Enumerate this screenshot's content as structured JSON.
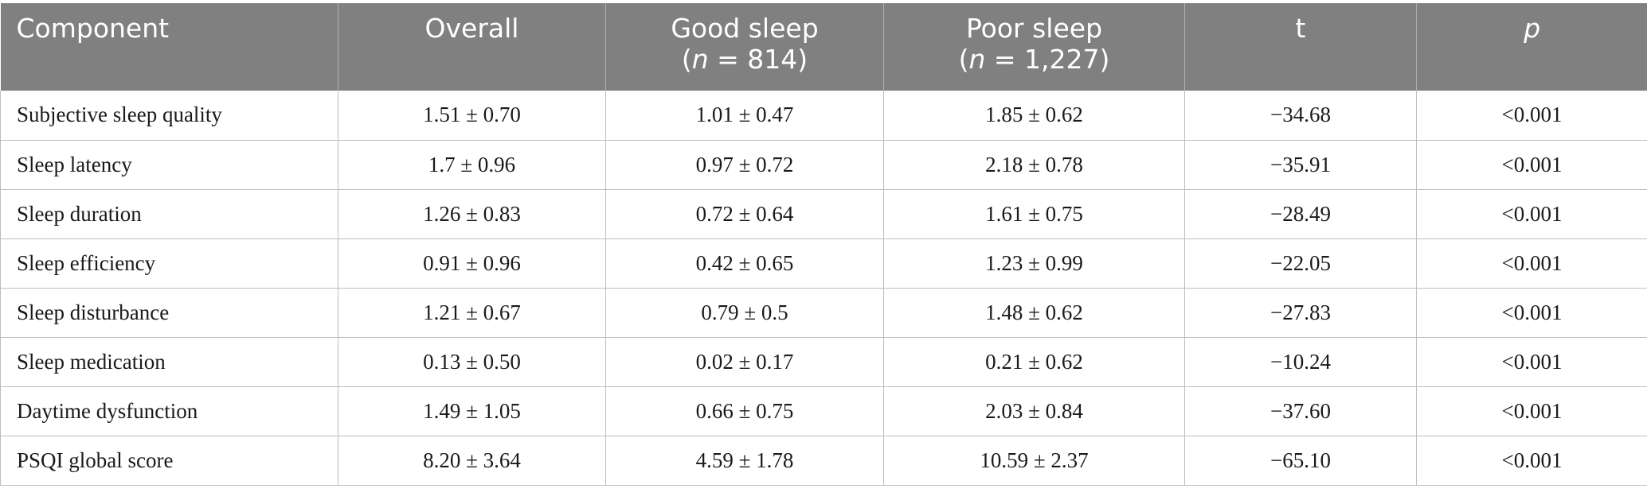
{
  "table": {
    "headers": {
      "component": "Component",
      "overall": "Overall",
      "good_sleep": "Good sleep",
      "good_n_italic": "n",
      "good_n_value": " = 814)",
      "poor_sleep": "Poor sleep",
      "poor_n_italic": "n",
      "poor_n_value": " = 1,227)",
      "open_paren": "(",
      "t": "t",
      "p": "p"
    },
    "rows": [
      {
        "component": "Subjective sleep quality",
        "overall": "1.51 ± 0.70",
        "good": "1.01 ± 0.47",
        "poor": "1.85 ± 0.62",
        "t": "−34.68",
        "p": "<0.001"
      },
      {
        "component": "Sleep latency",
        "overall": "1.7 ± 0.96",
        "good": "0.97 ± 0.72",
        "poor": "2.18 ± 0.78",
        "t": "−35.91",
        "p": "<0.001"
      },
      {
        "component": "Sleep duration",
        "overall": "1.26 ± 0.83",
        "good": "0.72 ± 0.64",
        "poor": "1.61 ± 0.75",
        "t": "−28.49",
        "p": "<0.001"
      },
      {
        "component": "Sleep efficiency",
        "overall": "0.91 ± 0.96",
        "good": "0.42 ± 0.65",
        "poor": "1.23 ± 0.99",
        "t": "−22.05",
        "p": "<0.001"
      },
      {
        "component": "Sleep disturbance",
        "overall": "1.21 ± 0.67",
        "good": "0.79 ± 0.5",
        "poor": "1.48 ± 0.62",
        "t": "−27.83",
        "p": "<0.001"
      },
      {
        "component": "Sleep medication",
        "overall": "0.13 ± 0.50",
        "good": "0.02 ± 0.17",
        "poor": "0.21 ± 0.62",
        "t": "−10.24",
        "p": "<0.001"
      },
      {
        "component": "Daytime dysfunction",
        "overall": "1.49 ± 1.05",
        "good": "0.66 ± 0.75",
        "poor": "2.03 ± 0.84",
        "t": "−37.60",
        "p": "<0.001"
      },
      {
        "component": "PSQI global score",
        "overall": "8.20 ± 3.64",
        "good": "4.59 ± 1.78",
        "poor": "10.59 ± 2.37",
        "t": "−65.10",
        "p": "<0.001"
      }
    ]
  },
  "colors": {
    "header_bg": "#808080",
    "header_text": "#ffffff",
    "grid": "#bdbdbd"
  }
}
